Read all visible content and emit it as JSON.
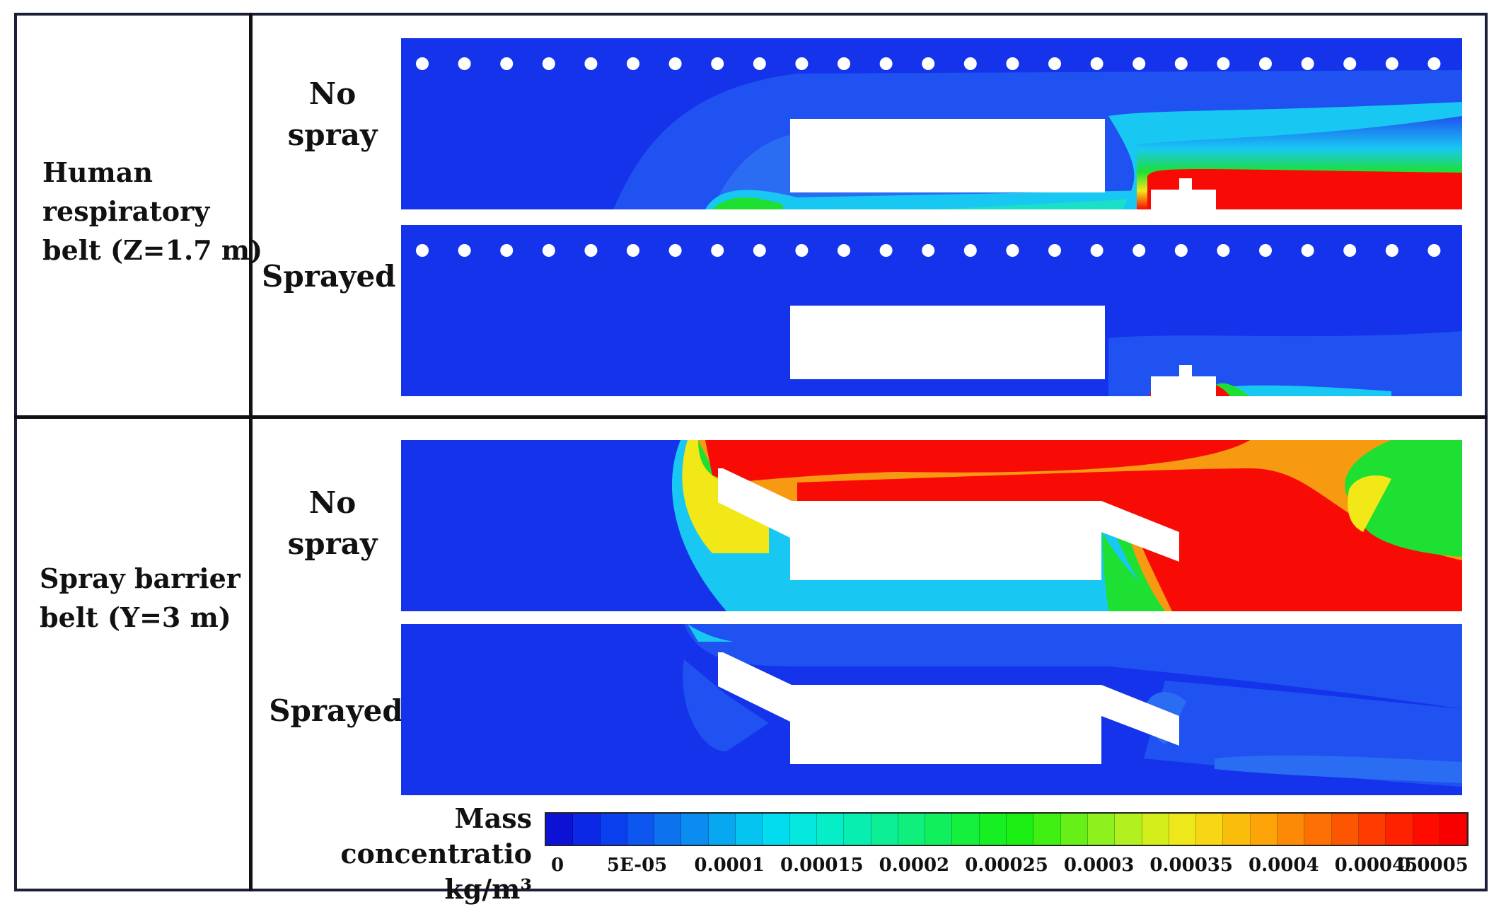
{
  "rows": [
    {
      "label": "Human\nrespiratory\nbelt (Z=1.7 m)",
      "panels": [
        {
          "label": "No\nspray",
          "case": "z_nospray"
        },
        {
          "label": "Sprayed",
          "case": "z_sprayed"
        }
      ]
    },
    {
      "label": "Spray barrier\nbelt (Y=3 m)",
      "panels": [
        {
          "label": "No\nspray",
          "case": "y_nospray"
        },
        {
          "label": "Sprayed",
          "case": "y_sprayed"
        }
      ]
    }
  ],
  "colorbar": {
    "title": "Mass concentratio\nkg/m³",
    "min": 0,
    "max": 0.0005,
    "ticks": [
      "0",
      "5E-05",
      "0.0001",
      "0.00015",
      "0.0002",
      "0.00025",
      "0.0003",
      "0.00035",
      "0.0004",
      "0.00045",
      "0.0005"
    ],
    "colors": [
      "#0d11d6",
      "#0a28e6",
      "#0a40ee",
      "#0d56f0",
      "#0c72ee",
      "#0a8cf0",
      "#07a8f0",
      "#05c4ef",
      "#03dbee",
      "#05e8e0",
      "#06eec8",
      "#08eeb0",
      "#0bee96",
      "#0eef7c",
      "#11f05c",
      "#14f03c",
      "#16ef22",
      "#1bee12",
      "#3ff012",
      "#66f018",
      "#8ef01c",
      "#b2f020",
      "#d4ee1c",
      "#eee81a",
      "#f7d613",
      "#fbbd0c",
      "#fca408",
      "#fd8a06",
      "#fd7004",
      "#fd5603",
      "#fe3c02",
      "#fe2201",
      "#fe0c00",
      "#f80000"
    ]
  },
  "colors": {
    "background": "#1433ea",
    "low": "#1f52f0",
    "cyan": "#19c8f2",
    "teal": "#1ae0c8",
    "green": "#1ee032",
    "yellow": "#f2e817",
    "orange": "#f79a12",
    "red": "#f80b05",
    "frame": "#1c1f3a"
  }
}
